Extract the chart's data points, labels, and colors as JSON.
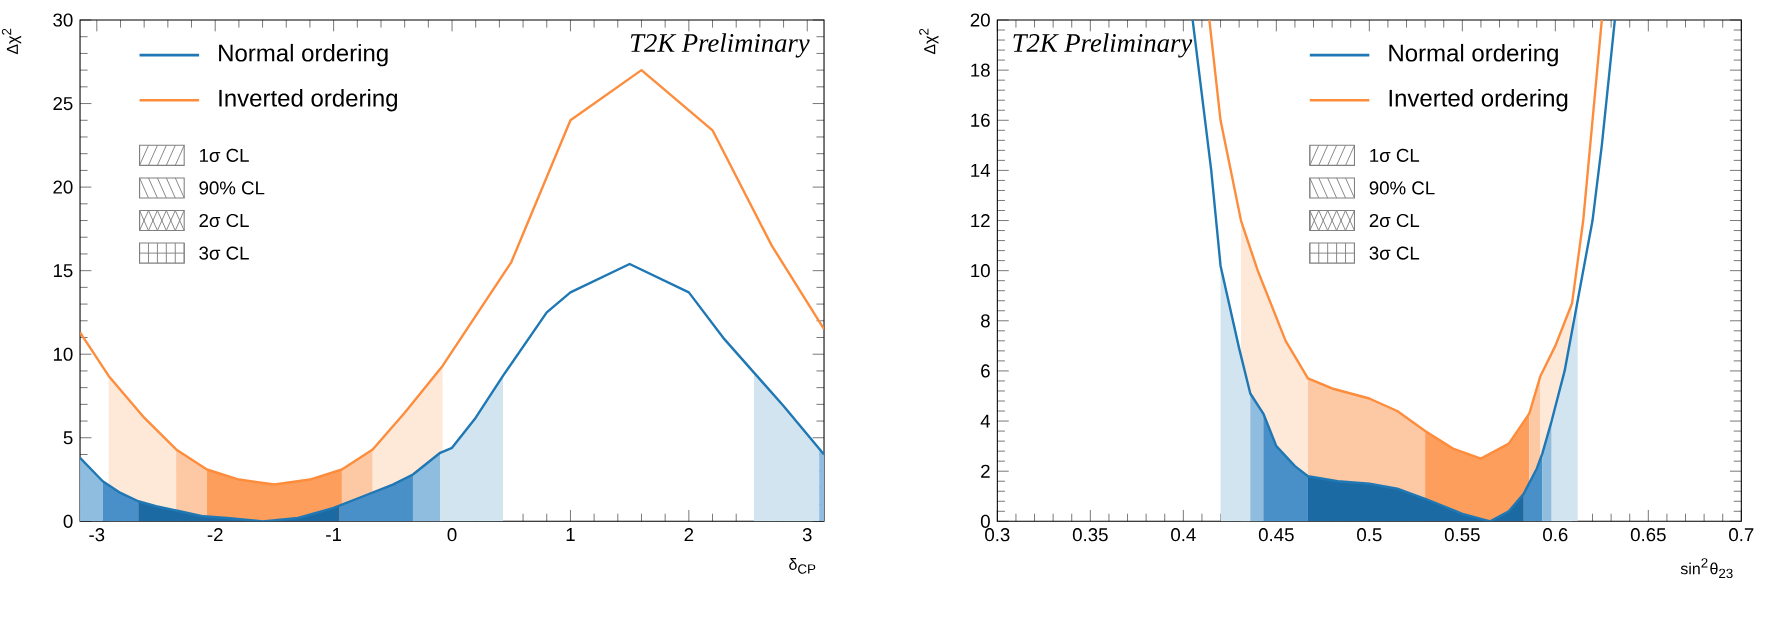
{
  "chart_data": [
    {
      "type": "line",
      "ylabel": "Δχ$^{2}$",
      "xlabel": "δ$_{CP}$",
      "xlim": [
        -3.1416,
        3.1416
      ],
      "ylim": [
        0,
        30
      ],
      "xticks": [
        -3,
        -2,
        -1,
        0,
        1,
        2,
        3
      ],
      "yticks": [
        0,
        5,
        10,
        15,
        20,
        25,
        30
      ],
      "legend": "top left",
      "marker": "none",
      "grid": false,
      "annotations": [
        "T2K Preliminary",
        "1σ CL",
        "90% CL",
        "2σ CL",
        "3σ CL"
      ],
      "series": [
        {
          "name": "Normal ordering",
          "color": "#1f78b4",
          "x": [
            -3.1416,
            -2.95,
            -2.8,
            -2.65,
            -2.5,
            -2.3,
            -2.1,
            -1.9,
            -1.6,
            -1.3,
            -1.0,
            -0.75,
            -0.5,
            -0.33,
            -0.1,
            0,
            0.2,
            0.43,
            0.8,
            1.0,
            1.5,
            2.0,
            2.3,
            2.55,
            2.8,
            3.1416
          ],
          "values": [
            3.8,
            2.4,
            1.7,
            1.2,
            0.9,
            0.6,
            0.3,
            0.2,
            0,
            0.2,
            0.8,
            1.5,
            2.2,
            2.8,
            4.1,
            4.4,
            6.2,
            8.7,
            12.5,
            13.7,
            15.4,
            13.7,
            10.9,
            8.9,
            6.9,
            4.0
          ]
        },
        {
          "name": "Inverted ordering",
          "color": "#fd8d3c",
          "x": [
            -3.1416,
            -2.9,
            -2.6,
            -2.33,
            -2.07,
            -1.8,
            -1.5,
            -1.2,
            -0.93,
            -0.67,
            -0.4,
            -0.08,
            0.5,
            1.0,
            1.6,
            2.2,
            2.7,
            3.1416
          ],
          "values": [
            11.3,
            8.7,
            6.2,
            4.3,
            3.1,
            2.5,
            2.2,
            2.5,
            3.1,
            4.3,
            6.5,
            9.3,
            15.5,
            24,
            27,
            23.4,
            16.5,
            11.5
          ]
        },
        {
          "type": "area",
          "color": "#fee8d8",
          "x": [
            -2.9,
            -2.6,
            -2.33
          ],
          "values": [
            8.7,
            6.2,
            4.3
          ]
        },
        {
          "type": "area",
          "color": "#fdc9a5",
          "x": [
            -2.33,
            -2.07
          ],
          "values": [
            4.3,
            3.1
          ]
        },
        {
          "type": "area",
          "color": "#fd9e5c",
          "x": [
            -2.07,
            -1.8,
            -1.5,
            -1.2,
            -0.93
          ],
          "values": [
            3.1,
            2.5,
            2.2,
            2.5,
            3.1
          ]
        },
        {
          "type": "area",
          "color": "#fdc9a5",
          "x": [
            -0.93,
            -0.67
          ],
          "values": [
            3.1,
            4.3
          ]
        },
        {
          "type": "area",
          "color": "#fee8d8",
          "x": [
            -0.67,
            -0.4,
            -0.08
          ],
          "values": [
            4.3,
            6.5,
            9.3
          ]
        },
        {
          "type": "area",
          "color": "#8fbde0",
          "x": [
            -3.1416,
            -2.95
          ],
          "values": [
            3.8,
            2.4
          ]
        },
        {
          "type": "area",
          "color": "#4a90c8",
          "x": [
            -2.95,
            -2.8,
            -2.65
          ],
          "values": [
            2.4,
            1.7,
            1.2
          ]
        },
        {
          "type": "area",
          "color": "#1c6aa3",
          "x": [
            -2.65,
            -2.5,
            -2.3,
            -2.1,
            -1.9,
            -1.6,
            -1.3,
            -1.0,
            -0.95
          ],
          "values": [
            1.2,
            0.9,
            0.6,
            0.3,
            0.2,
            0,
            0.2,
            0.8,
            0.9
          ]
        },
        {
          "type": "area",
          "color": "#4a90c8",
          "x": [
            -0.95,
            -0.75,
            -0.5,
            -0.33
          ],
          "values": [
            0.9,
            1.5,
            2.2,
            2.8
          ]
        },
        {
          "type": "area",
          "color": "#8fbde0",
          "x": [
            -0.33,
            -0.1
          ],
          "values": [
            2.8,
            4.1
          ]
        },
        {
          "type": "area",
          "color": "#d2e4f0",
          "x": [
            -0.1,
            0,
            0.2,
            0.43
          ],
          "values": [
            4.1,
            4.4,
            6.2,
            8.7
          ]
        },
        {
          "type": "area",
          "color": "#d2e4f0",
          "x": [
            2.55,
            2.8,
            3.1
          ],
          "values": [
            8.9,
            6.9,
            4.4
          ]
        },
        {
          "type": "area",
          "color": "#8fbde0",
          "x": [
            3.1,
            3.1416
          ],
          "values": [
            4.4,
            4.0
          ]
        }
      ]
    },
    {
      "type": "line",
      "ylabel": "Δχ$^{2}$",
      "xlabel": "sin$^{2}$θ$_{23}$",
      "xlim": [
        0.3,
        0.7
      ],
      "ylim": [
        0,
        20
      ],
      "xticks": [
        0.3,
        0.35,
        0.4,
        0.45,
        0.5,
        0.55,
        0.6,
        0.65,
        0.7
      ],
      "yticks": [
        0,
        2,
        4,
        6,
        8,
        10,
        12,
        14,
        16,
        18,
        20
      ],
      "legend": "top right",
      "marker": "none",
      "grid": false,
      "annotations": [
        "T2K Preliminary",
        "1σ CL",
        "90% CL",
        "2σ CL",
        "3σ CL"
      ],
      "series": [
        {
          "name": "Normal ordering",
          "color": "#1f78b4",
          "x": [
            0.405,
            0.41,
            0.415,
            0.42,
            0.43,
            0.436,
            0.443,
            0.45,
            0.46,
            0.467,
            0.483,
            0.5,
            0.515,
            0.53,
            0.55,
            0.565,
            0.575,
            0.583,
            0.59,
            0.593,
            0.598,
            0.605,
            0.612,
            0.62,
            0.625,
            0.632
          ],
          "values": [
            20,
            17,
            14,
            10.2,
            6.9,
            5.1,
            4.3,
            3.0,
            2.2,
            1.8,
            1.6,
            1.5,
            1.3,
            0.9,
            0.3,
            0,
            0.4,
            1.1,
            2.1,
            2.7,
            4.0,
            6.0,
            8.8,
            12,
            15,
            20
          ]
        },
        {
          "name": "Inverted ordering",
          "color": "#fd8d3c",
          "x": [
            0.414,
            0.42,
            0.431,
            0.44,
            0.455,
            0.467,
            0.48,
            0.5,
            0.515,
            0.53,
            0.545,
            0.56,
            0.575,
            0.586,
            0.592,
            0.6,
            0.609,
            0.615,
            0.625
          ],
          "values": [
            20,
            16,
            12,
            10,
            7.2,
            5.7,
            5.3,
            4.9,
            4.4,
            3.6,
            2.9,
            2.5,
            3.1,
            4.3,
            5.8,
            7.0,
            8.7,
            12,
            20
          ]
        },
        {
          "type": "area",
          "color": "#fee8d8",
          "x": [
            0.431,
            0.44,
            0.455,
            0.467
          ],
          "values": [
            12,
            10,
            7.2,
            5.7
          ]
        },
        {
          "type": "area",
          "color": "#fdc9a5",
          "x": [
            0.467,
            0.48,
            0.5,
            0.515,
            0.53
          ],
          "values": [
            5.7,
            5.3,
            4.9,
            4.4,
            3.6
          ]
        },
        {
          "type": "area",
          "color": "#fd9e5c",
          "x": [
            0.53,
            0.545,
            0.56,
            0.575,
            0.586
          ],
          "values": [
            3.6,
            2.9,
            2.5,
            3.1,
            4.3
          ]
        },
        {
          "type": "area",
          "color": "#fdc9a5",
          "x": [
            0.586,
            0.592
          ],
          "values": [
            4.3,
            5.8
          ]
        },
        {
          "type": "area",
          "color": "#fee8d8",
          "x": [
            0.592,
            0.6,
            0.609
          ],
          "values": [
            5.8,
            7.0,
            8.7
          ]
        },
        {
          "type": "area",
          "color": "#d2e4f0",
          "x": [
            0.42,
            0.43,
            0.436
          ],
          "values": [
            10.2,
            6.9,
            5.1
          ]
        },
        {
          "type": "area",
          "color": "#8fbde0",
          "x": [
            0.436,
            0.443
          ],
          "values": [
            5.1,
            4.3
          ]
        },
        {
          "type": "area",
          "color": "#4a90c8",
          "x": [
            0.443,
            0.45,
            0.46,
            0.467
          ],
          "values": [
            4.3,
            3.0,
            2.2,
            1.8
          ]
        },
        {
          "type": "area",
          "color": "#1c6aa3",
          "x": [
            0.467,
            0.483,
            0.5,
            0.515,
            0.53,
            0.55,
            0.565,
            0.575,
            0.583
          ],
          "values": [
            1.8,
            1.6,
            1.5,
            1.3,
            0.9,
            0.3,
            0,
            0.4,
            1.1
          ]
        },
        {
          "type": "area",
          "color": "#4a90c8",
          "x": [
            0.583,
            0.59,
            0.593
          ],
          "values": [
            1.1,
            2.1,
            2.7
          ]
        },
        {
          "type": "area",
          "color": "#8fbde0",
          "x": [
            0.593,
            0.598
          ],
          "values": [
            2.7,
            4.0
          ]
        },
        {
          "type": "area",
          "color": "#d2e4f0",
          "x": [
            0.598,
            0.605,
            0.612
          ],
          "values": [
            4.0,
            6.0,
            8.8
          ]
        }
      ]
    }
  ]
}
